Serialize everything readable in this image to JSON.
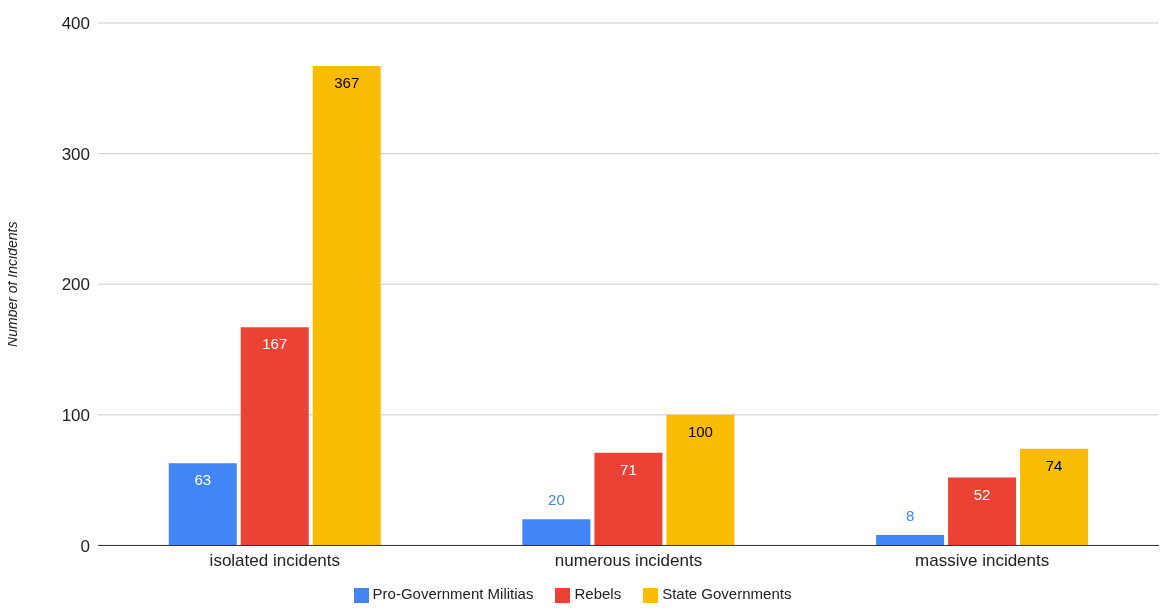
{
  "chart_data": {
    "type": "bar",
    "ylabel": "Number of Incidents",
    "categories": [
      "isolated incidents",
      "numerous incidents",
      "massive incidents"
    ],
    "series": [
      {
        "name": "Pro-Government Militias",
        "color": "#4285f4",
        "values": [
          63,
          20,
          8
        ]
      },
      {
        "name": "Rebels",
        "color": "#ea4335",
        "values": [
          167,
          71,
          52
        ]
      },
      {
        "name": "State Governments",
        "color": "#fbbc04",
        "values": [
          367,
          100,
          74
        ]
      }
    ],
    "ylim": [
      0,
      400
    ],
    "yticks": [
      0,
      100,
      200,
      300,
      400
    ],
    "grid": "y",
    "legend": "bottom",
    "data_labels": true
  }
}
